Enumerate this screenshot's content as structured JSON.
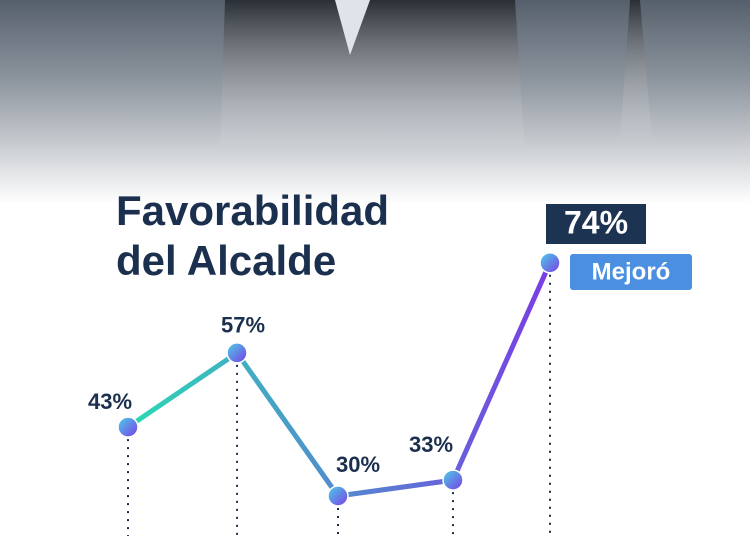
{
  "chart_data": {
    "type": "line",
    "title": "Favorabilidad del Alcalde",
    "categories": [
      null,
      null,
      null,
      null,
      null
    ],
    "series": [
      {
        "name": null,
        "gradient": [
          "#2bd9b4",
          "#7b3ce6"
        ],
        "values": [
          43,
          57,
          30,
          33,
          74
        ],
        "value_labels": [
          "43%",
          "57%",
          "30%",
          "33%",
          "74%"
        ]
      }
    ],
    "annotation": "Mejoró"
  }
}
